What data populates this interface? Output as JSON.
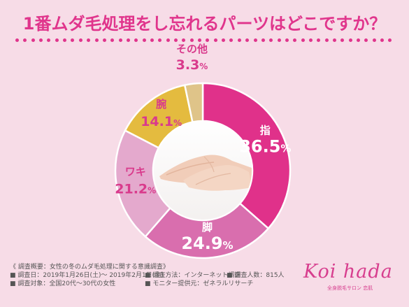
{
  "header": {
    "title": "1番ムダ毛処理をし忘れるパーツはどこですか？"
  },
  "colors": {
    "accent": "#e0358c",
    "background": "#f7dce7"
  },
  "chart_data": {
    "type": "pie",
    "donut": true,
    "slices": [
      {
        "label": "指",
        "value": 36.5,
        "display_value": "36.5",
        "unit": "%",
        "color": "#e0318a",
        "label_color": "#ffffff"
      },
      {
        "label": "脚",
        "value": 24.9,
        "display_value": "24.9",
        "unit": "%",
        "color": "#d96eae",
        "label_color": "#ffffff"
      },
      {
        "label": "ワキ",
        "value": 21.2,
        "display_value": "21.2",
        "unit": "%",
        "color": "#e4a9cd",
        "label_color": "#d93a8c"
      },
      {
        "label": "腕",
        "value": 14.1,
        "display_value": "14.1",
        "unit": "%",
        "color": "#e4bb3f",
        "label_color": "#d93a8c"
      },
      {
        "label": "その他",
        "value": 3.3,
        "display_value": "3.3",
        "unit": "%",
        "color": "#dfc489",
        "label_color": "#d93a8c"
      }
    ],
    "start_angle_deg": 0,
    "direction": "clockwise",
    "center_image": "hands-photo"
  },
  "footer": {
    "heading": "《 調査概要：女性の冬のムダ毛処理に関する意識調査》",
    "items": [
      "■ 調査日：2019年1月26日(土)～ 2019年2月1日(金)",
      "■ 調査方法：インターネット調査",
      "■ 調査人数：815人",
      "■ 調査対象：全国20代～30代の女性",
      "■ モニター提供元：ゼネラルリサーチ"
    ]
  },
  "logo": {
    "wordmark": "Koi hada",
    "tagline": "全身脱毛サロン 恋肌"
  }
}
